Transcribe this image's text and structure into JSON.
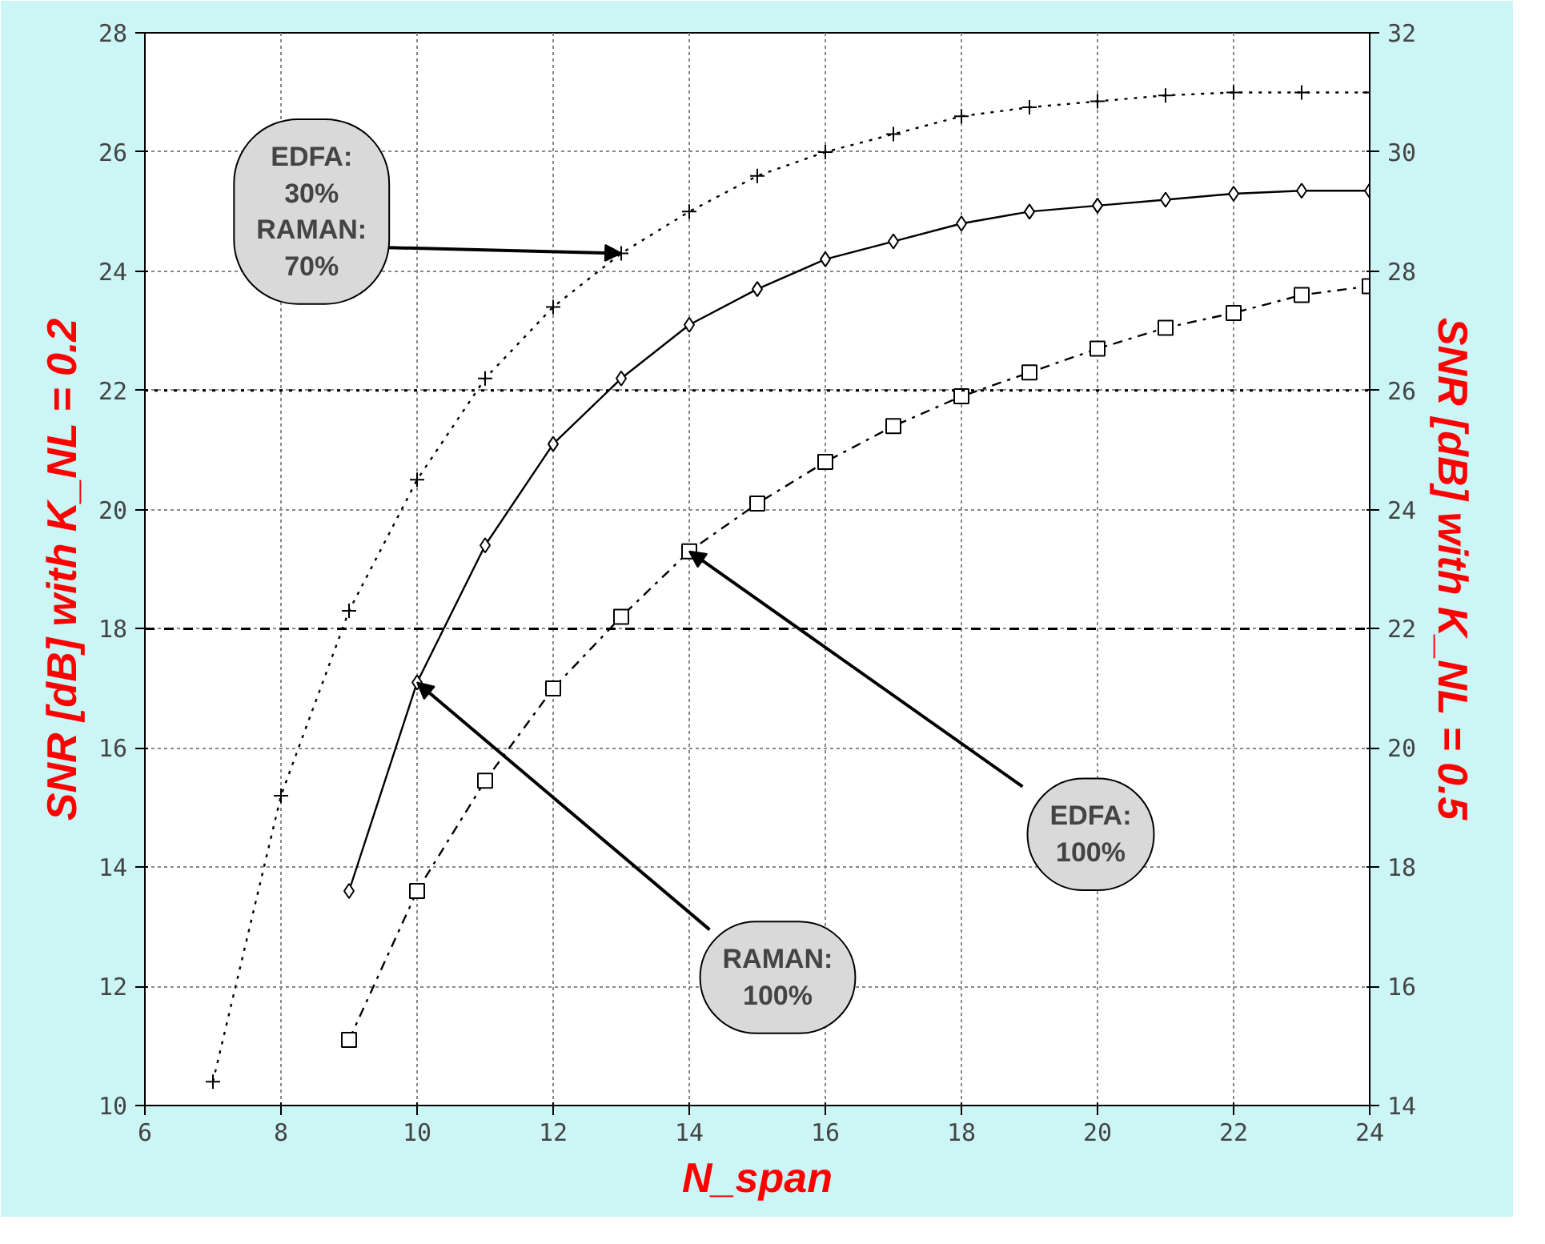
{
  "chart_data": {
    "type": "line",
    "xlabel": "N_span",
    "ylabel": "SNR [dB] with K_NL = 0.2",
    "y2label": "SNR [dB] with K_NL = 0.5",
    "xlim": [
      6,
      24
    ],
    "ylim": [
      10,
      28
    ],
    "y2lim": [
      14,
      32
    ],
    "xticks": [
      6,
      8,
      10,
      12,
      14,
      16,
      18,
      20,
      22,
      24
    ],
    "yticks": [
      10,
      12,
      14,
      16,
      18,
      20,
      22,
      24,
      26,
      28
    ],
    "y2ticks": [
      14,
      16,
      18,
      20,
      22,
      24,
      26,
      28,
      30,
      32
    ],
    "grid": true,
    "annotations": [
      {
        "text": "EDFA: 30% RAMAN: 70%",
        "x": 13,
        "y": 24.3
      },
      {
        "text": "RAMAN: 100%",
        "x": 10,
        "y": 17.1
      },
      {
        "text": "EDFA: 100%",
        "x": 14,
        "y": 19.3
      }
    ],
    "x": [
      7,
      8,
      9,
      10,
      11,
      12,
      13,
      14,
      15,
      16,
      17,
      18,
      19,
      20,
      21,
      22,
      23,
      24
    ],
    "series": [
      {
        "color": "#000000",
        "marker": "cross",
        "line_style": "dotted",
        "values": [
          10.4,
          15.2,
          18.3,
          20.5,
          22.2,
          23.4,
          24.3,
          25.0,
          25.6,
          26.0,
          26.3,
          26.6,
          26.75,
          26.85,
          26.95,
          27.0,
          27.0,
          27.0
        ]
      },
      {
        "color": "#000000",
        "marker": "diamond",
        "line_style": "solid",
        "values": [
          null,
          null,
          13.6,
          17.1,
          19.4,
          21.1,
          22.2,
          23.1,
          23.7,
          24.2,
          24.5,
          24.8,
          25.0,
          25.1,
          25.2,
          25.3,
          25.35,
          25.35
        ]
      },
      {
        "color": "#000000",
        "marker": "square",
        "line_style": "dashed",
        "values": [
          null,
          null,
          11.1,
          13.6,
          15.45,
          17.0,
          18.2,
          19.3,
          20.1,
          20.8,
          21.4,
          21.9,
          22.3,
          22.7,
          23.05,
          23.3,
          23.6,
          23.75
        ]
      }
    ],
    "ref_lines": [
      {
        "axis": "y",
        "value": 22,
        "line_style": "dotted",
        "color": "#000000"
      },
      {
        "axis": "y",
        "value": 18,
        "line_style": "dashed",
        "color": "#000000"
      }
    ]
  }
}
